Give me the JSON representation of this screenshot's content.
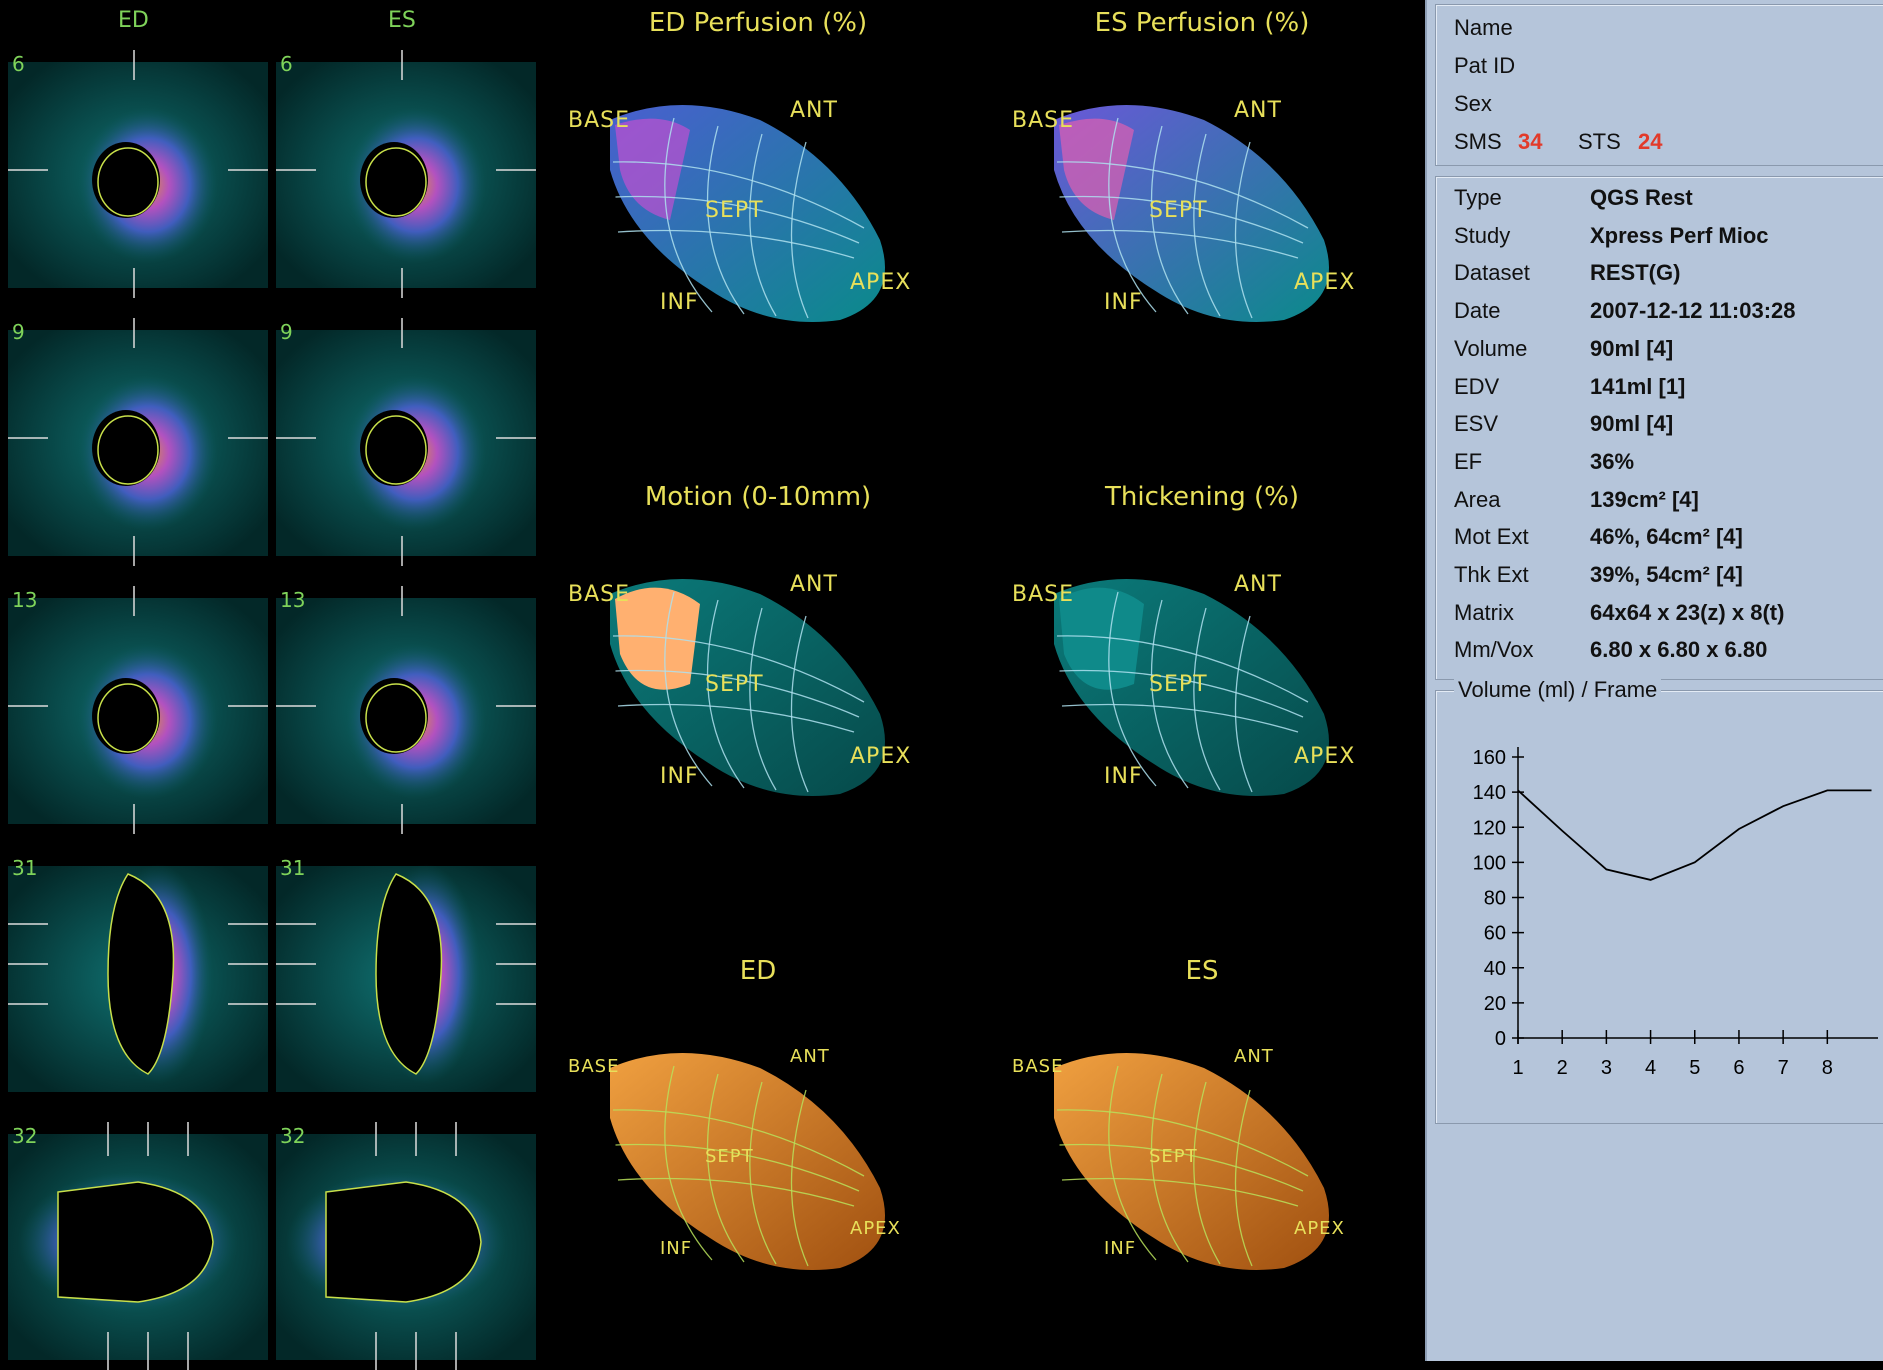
{
  "slices": {
    "col_headers": {
      "ed": "ED",
      "es": "ES"
    },
    "rows": [
      {
        "num": "6"
      },
      {
        "num": "9"
      },
      {
        "num": "13"
      },
      {
        "num": "31"
      },
      {
        "num": "32"
      }
    ]
  },
  "panels": {
    "ed_perfusion": {
      "title": "ED Perfusion (%)"
    },
    "es_perfusion": {
      "title": "ES Perfusion (%)"
    },
    "motion": {
      "title": "Motion (0-10mm)"
    },
    "thickening": {
      "title": "Thickening (%)"
    },
    "ed": {
      "title": "ED"
    },
    "es": {
      "title": "ES"
    },
    "labels": {
      "base": "BASE",
      "ant": "ANT",
      "sept": "SEPT",
      "inf": "INF",
      "apex": "APEX"
    }
  },
  "patient": {
    "name_label": "Name",
    "pat_id_label": "Pat ID",
    "sex_label": "Sex",
    "sms_label": "SMS",
    "sms_value": "34",
    "sts_label": "STS",
    "sts_value": "24"
  },
  "study": [
    {
      "label": "Type",
      "value": "QGS Rest"
    },
    {
      "label": "Study",
      "value": "Xpress Perf Mioc"
    },
    {
      "label": "Dataset",
      "value": "REST(G)"
    },
    {
      "label": "Date",
      "value": "2007-12-12 11:03:28"
    },
    {
      "label": "Volume",
      "value": "90ml [4]"
    },
    {
      "label": "EDV",
      "value": "141ml [1]"
    },
    {
      "label": "ESV",
      "value": "90ml [4]"
    },
    {
      "label": "EF",
      "value": "36%"
    },
    {
      "label": "Area",
      "value": "139cm² [4]"
    },
    {
      "label": "Mot Ext",
      "value": "46%, 64cm² [4]"
    },
    {
      "label": "Thk Ext",
      "value": "39%, 54cm² [4]"
    },
    {
      "label": "Matrix",
      "value": "64x64 x 23(z) x 8(t)"
    },
    {
      "label": "Mm/Vox",
      "value": "6.80 x 6.80 x 6.80"
    }
  ],
  "chart_data": {
    "type": "line",
    "title": "Volume (ml) / Frame",
    "x": [
      1,
      2,
      3,
      4,
      5,
      6,
      7,
      8,
      9
    ],
    "values": [
      141,
      118,
      96,
      90,
      100,
      119,
      132,
      141,
      141
    ],
    "x_ticks": [
      "1",
      "2",
      "3",
      "4",
      "5",
      "6",
      "7",
      "8"
    ],
    "y_ticks": [
      "0",
      "20",
      "40",
      "60",
      "80",
      "100",
      "120",
      "140",
      "160"
    ],
    "ylim": [
      0,
      160
    ],
    "xlim": [
      1,
      9
    ]
  }
}
